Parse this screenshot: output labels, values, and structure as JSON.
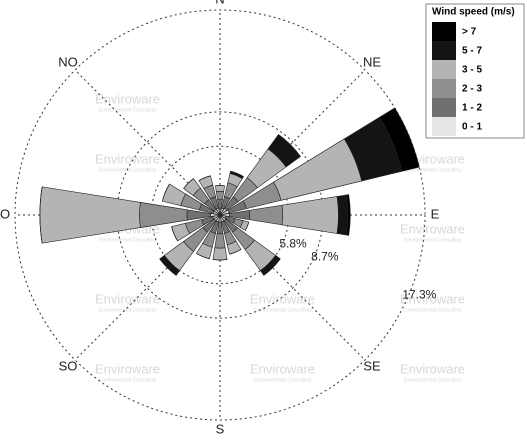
{
  "chart_data": {
    "type": "windrose",
    "legend_title": "Wind speed (m/s)",
    "watermark": "Enviroware",
    "watermark_sub": "Environmental Consulting",
    "categories": [
      "N",
      null,
      "NE",
      null,
      "E",
      null,
      "SE",
      null,
      "S",
      null,
      "SO",
      null,
      "O",
      null,
      "NO",
      null
    ],
    "rlim": [
      0,
      17.3
    ],
    "rticks": [
      {
        "value": 5.8,
        "label": "5.8%"
      },
      {
        "value": 8.7,
        "label": "8.7%"
      },
      {
        "value": 17.3,
        "label": "17.3%"
      }
    ],
    "series": [
      {
        "name": "0 - 1",
        "color": "#e6e6e6",
        "values": [
          0.5,
          0.6,
          0.7,
          0.8,
          0.8,
          0.5,
          0.6,
          0.6,
          0.6,
          0.6,
          0.6,
          0.6,
          0.8,
          0.6,
          0.6,
          0.6
        ]
      },
      {
        "name": "1 - 2",
        "color": "#707070",
        "values": [
          0.8,
          1.0,
          1.2,
          1.5,
          1.7,
          0.8,
          1.2,
          1.0,
          1.0,
          1.0,
          1.2,
          1.0,
          2.0,
          1.2,
          1.0,
          1.0
        ]
      },
      {
        "name": "2 - 3",
        "color": "#8e8e8e",
        "values": [
          0.7,
          1.2,
          2.0,
          3.0,
          2.8,
          0.7,
          1.8,
          1.0,
          1.2,
          1.2,
          2.0,
          1.4,
          4.0,
          1.6,
          1.2,
          1.0
        ]
      },
      {
        "name": "3 - 5",
        "color": "#b4b4b4",
        "values": [
          0.5,
          0.8,
          3.0,
          7.0,
          4.7,
          0.5,
          2.2,
          0.8,
          1.0,
          1.0,
          2.0,
          1.2,
          8.4,
          1.6,
          1.0,
          0.8
        ]
      },
      {
        "name": "5 - 7",
        "color": "#141414",
        "values": [
          0,
          0.2,
          1.5,
          3.5,
          0.8,
          0,
          0.4,
          0,
          0,
          0,
          0.5,
          0,
          0,
          0,
          0,
          0
        ]
      },
      {
        "name": "> 7",
        "color": "#000000",
        "values": [
          0,
          0,
          0,
          1.5,
          0.2,
          0,
          0.1,
          0,
          0,
          0,
          0,
          0,
          0,
          0,
          0,
          0
        ]
      }
    ]
  }
}
